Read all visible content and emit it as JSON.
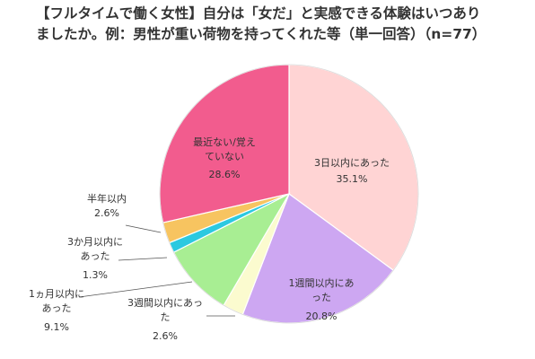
{
  "chart_data": {
    "type": "pie",
    "title_lines": [
      "【フルタイムで働く女性】自分は「女だ」と実感できる体験はいつあり",
      "ましたか。例：男性が重い荷物を持ってくれた等（単一回答）（n=77）"
    ],
    "slices": [
      {
        "label": "3日以内にあった",
        "value": 35.1,
        "value_text": "35.1%",
        "color": "#FFD4D4"
      },
      {
        "label": "1週間以内にあった",
        "value": 20.8,
        "value_text": "20.8%",
        "color": "#CDA7F2"
      },
      {
        "label": "3週間以内にあった",
        "value": 2.6,
        "value_text": "2.6%",
        "color": "#FBFBCF"
      },
      {
        "label": "1ヵ月以内にあった",
        "value": 9.1,
        "value_text": "9.1%",
        "color": "#A8EE93"
      },
      {
        "label": "3か月以内にあった",
        "value": 1.3,
        "value_text": "1.3%",
        "color": "#2CC9E0"
      },
      {
        "label": "半年以内",
        "value": 2.6,
        "value_text": "2.6%",
        "color": "#F7C460"
      },
      {
        "label": "最近ない/覚えていない",
        "value": 28.6,
        "value_text": "28.6%",
        "color": "#F25C8E"
      }
    ]
  }
}
